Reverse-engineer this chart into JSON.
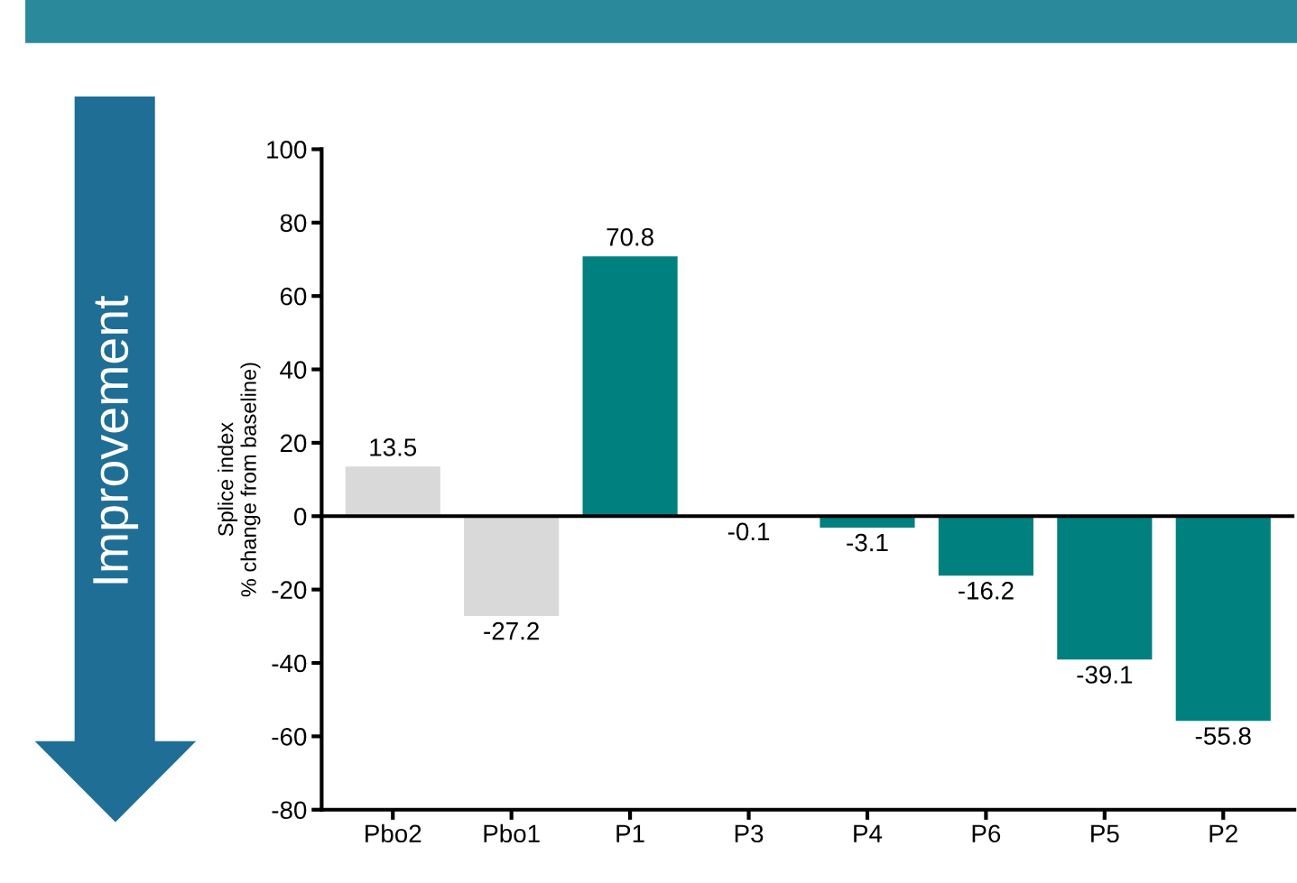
{
  "chart_data": {
    "type": "bar",
    "ylabel": "Splice index\n% change from baseline)",
    "categories": [
      "Pbo2",
      "Pbo1",
      "P1",
      "P3",
      "P4",
      "P6",
      "P5",
      "P2"
    ],
    "values": [
      13.5,
      -27.2,
      70.8,
      -0.1,
      -3.1,
      -16.2,
      -39.1,
      -55.8
    ],
    "colors": [
      "#d9d9d9",
      "#d9d9d9",
      "#00807f",
      "#00807f",
      "#00807f",
      "#00807f",
      "#00807f",
      "#00807f"
    ],
    "ylim": [
      -80,
      100
    ],
    "yticks": [
      -80,
      -60,
      -40,
      -20,
      0,
      20,
      40,
      60,
      80,
      100
    ],
    "ref_lines": [
      {
        "axis": "y",
        "value": 0,
        "color": "#000000"
      }
    ],
    "annotations": [
      "Improvement"
    ],
    "data_labels": true,
    "grid": false,
    "legend": false
  }
}
